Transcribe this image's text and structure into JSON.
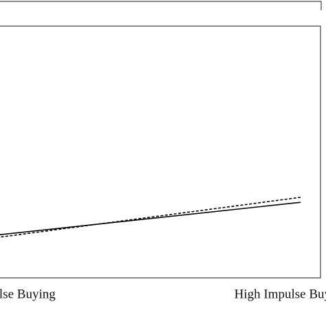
{
  "chart_data": {
    "type": "line",
    "categories": [
      "Low Impulse Buying",
      "High Impulse Buying"
    ],
    "series": [
      {
        "color": "#000000",
        "dash": "solid",
        "values": [
          17,
          30
        ]
      },
      {
        "color": "#000000",
        "dash": "dashed",
        "values": [
          16,
          32
        ]
      }
    ],
    "ylim": [
      0,
      100
    ]
  }
}
